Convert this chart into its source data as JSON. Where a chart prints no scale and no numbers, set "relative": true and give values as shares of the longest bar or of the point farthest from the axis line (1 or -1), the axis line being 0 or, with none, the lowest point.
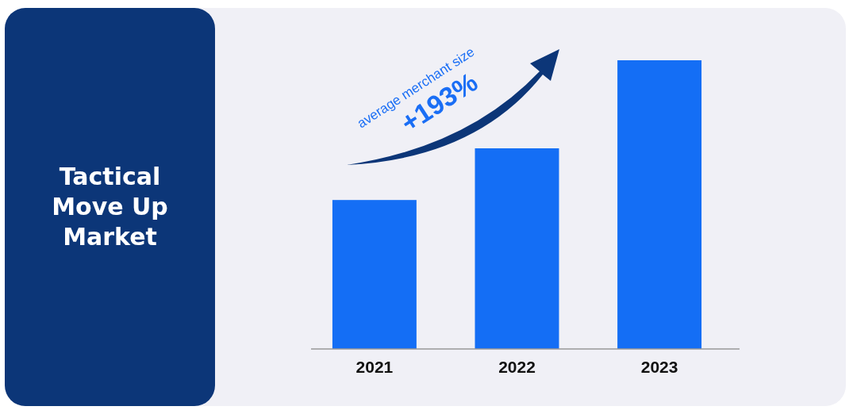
{
  "chart_data": {
    "type": "bar",
    "title": "Tactical Move Up Market",
    "categories": [
      "2021",
      "2022",
      "2023"
    ],
    "values": [
      0.516,
      0.695,
      1
    ],
    "color": "#146ef5",
    "relative": true,
    "annotations": [
      "average merchant size",
      "+193%"
    ]
  }
}
